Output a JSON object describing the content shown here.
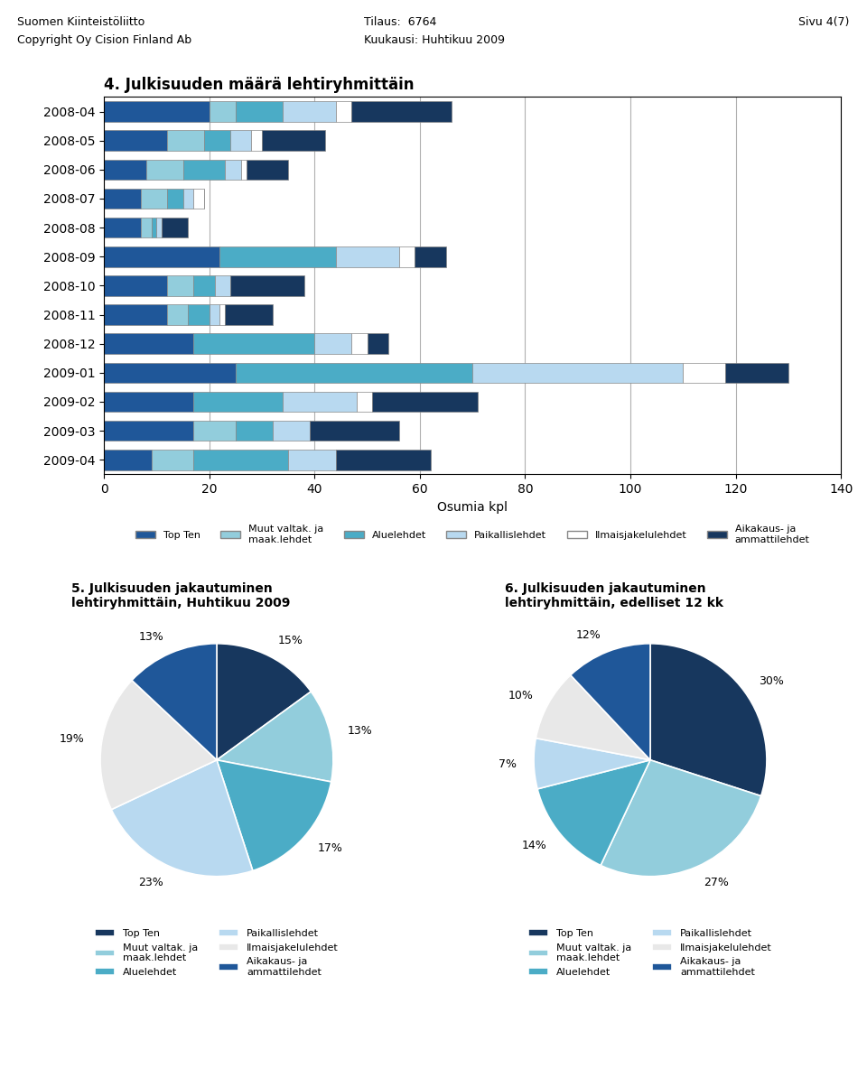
{
  "chart_data": [
    {
      "type": "bar",
      "orientation": "horizontal",
      "stacked": true,
      "title": "4. Julkisuuden määrä lehtiryhmittäin",
      "annotations": [
        "Suomen Kiinteistöliitto",
        "Copyright Oy Cision Finland Ab",
        "Tilaus:  6764",
        "Kuukausi: Huhtikuu 2009",
        "Sivu 4(7)"
      ],
      "x_label": "Osumia kpl",
      "categories": [
        "2008-04",
        "2008-05",
        "2008-06",
        "2008-07",
        "2008-08",
        "2008-09",
        "2008-10",
        "2008-11",
        "2008-12",
        "2009-01",
        "2009-02",
        "2009-03",
        "2009-04"
      ],
      "series": [
        {
          "name": "Top Ten",
          "color": "#1F5799",
          "values": [
            20,
            12,
            8,
            7,
            7,
            22,
            12,
            12,
            17,
            25,
            17,
            17,
            9
          ]
        },
        {
          "name": "Muut valtak. ja\nmaak.lehdet",
          "color": "#92CDDC",
          "values": [
            5,
            7,
            7,
            5,
            2,
            0,
            5,
            4,
            0,
            0,
            0,
            8,
            8
          ]
        },
        {
          "name": "Aluelehdet",
          "color": "#4BACC6",
          "values": [
            9,
            5,
            8,
            3,
            1,
            22,
            4,
            4,
            23,
            45,
            17,
            7,
            18
          ]
        },
        {
          "name": "Paikallislehdet",
          "color": "#B8D9F0",
          "values": [
            10,
            4,
            3,
            2,
            1,
            12,
            3,
            2,
            7,
            40,
            14,
            7,
            9
          ]
        },
        {
          "name": "Ilmaisjakelulehdet",
          "color": "#FFFFFF",
          "values": [
            3,
            2,
            1,
            2,
            0,
            3,
            0,
            1,
            3,
            8,
            3,
            0,
            0
          ]
        },
        {
          "name": "Aikakaus- ja\nammattilehdet",
          "color": "#17375E",
          "values": [
            19,
            12,
            8,
            0,
            5,
            6,
            14,
            9,
            4,
            12,
            20,
            17,
            18
          ]
        }
      ],
      "xlim": [
        0,
        140
      ],
      "xticks": [
        0,
        20,
        40,
        60,
        80,
        100,
        120,
        140
      ],
      "grid": true,
      "legend": "upper center"
    },
    {
      "type": "pie",
      "title": "5. Julkisuuden jakautuminen\nlehtiryhmittäin, Huhtikuu 2009",
      "categories": [
        "Top Ten",
        "Muut valtak. ja\nmaak.lehdet",
        "Aluelehdet",
        "Paikallislehdet",
        "Ilmaisjakelulehdet",
        "Aikakaus- ja\nammattilehdet"
      ],
      "values": [
        15,
        13,
        17,
        23,
        19,
        13
      ],
      "value_labels": [
        "15%",
        "13%",
        "17%",
        "23%",
        "19%",
        "13%"
      ],
      "colors": [
        "#17375E",
        "#92CDDC",
        "#4BACC6",
        "#B8D9F0",
        "#E8E8E8",
        "#1F5799"
      ],
      "data_labels": true,
      "legend": "upper center"
    },
    {
      "type": "pie",
      "title": "6. Julkisuuden jakautuminen\nlehtiryhmittäin, edelliset 12 kk",
      "categories": [
        "Top Ten",
        "Muut valtak. ja\nmaak.lehdet",
        "Aluelehdet",
        "Paikallislehdet",
        "Ilmaisjakelulehdet",
        "Aikakaus- ja\nammattilehdet"
      ],
      "values": [
        30,
        27,
        14,
        7,
        10,
        12
      ],
      "value_labels": [
        "30%",
        "27%",
        "14%",
        "7%",
        "10%",
        "12%"
      ],
      "colors": [
        "#17375E",
        "#92CDDC",
        "#4BACC6",
        "#B8D9F0",
        "#E8E8E8",
        "#1F5799"
      ],
      "data_labels": true,
      "legend": "upper center"
    }
  ]
}
